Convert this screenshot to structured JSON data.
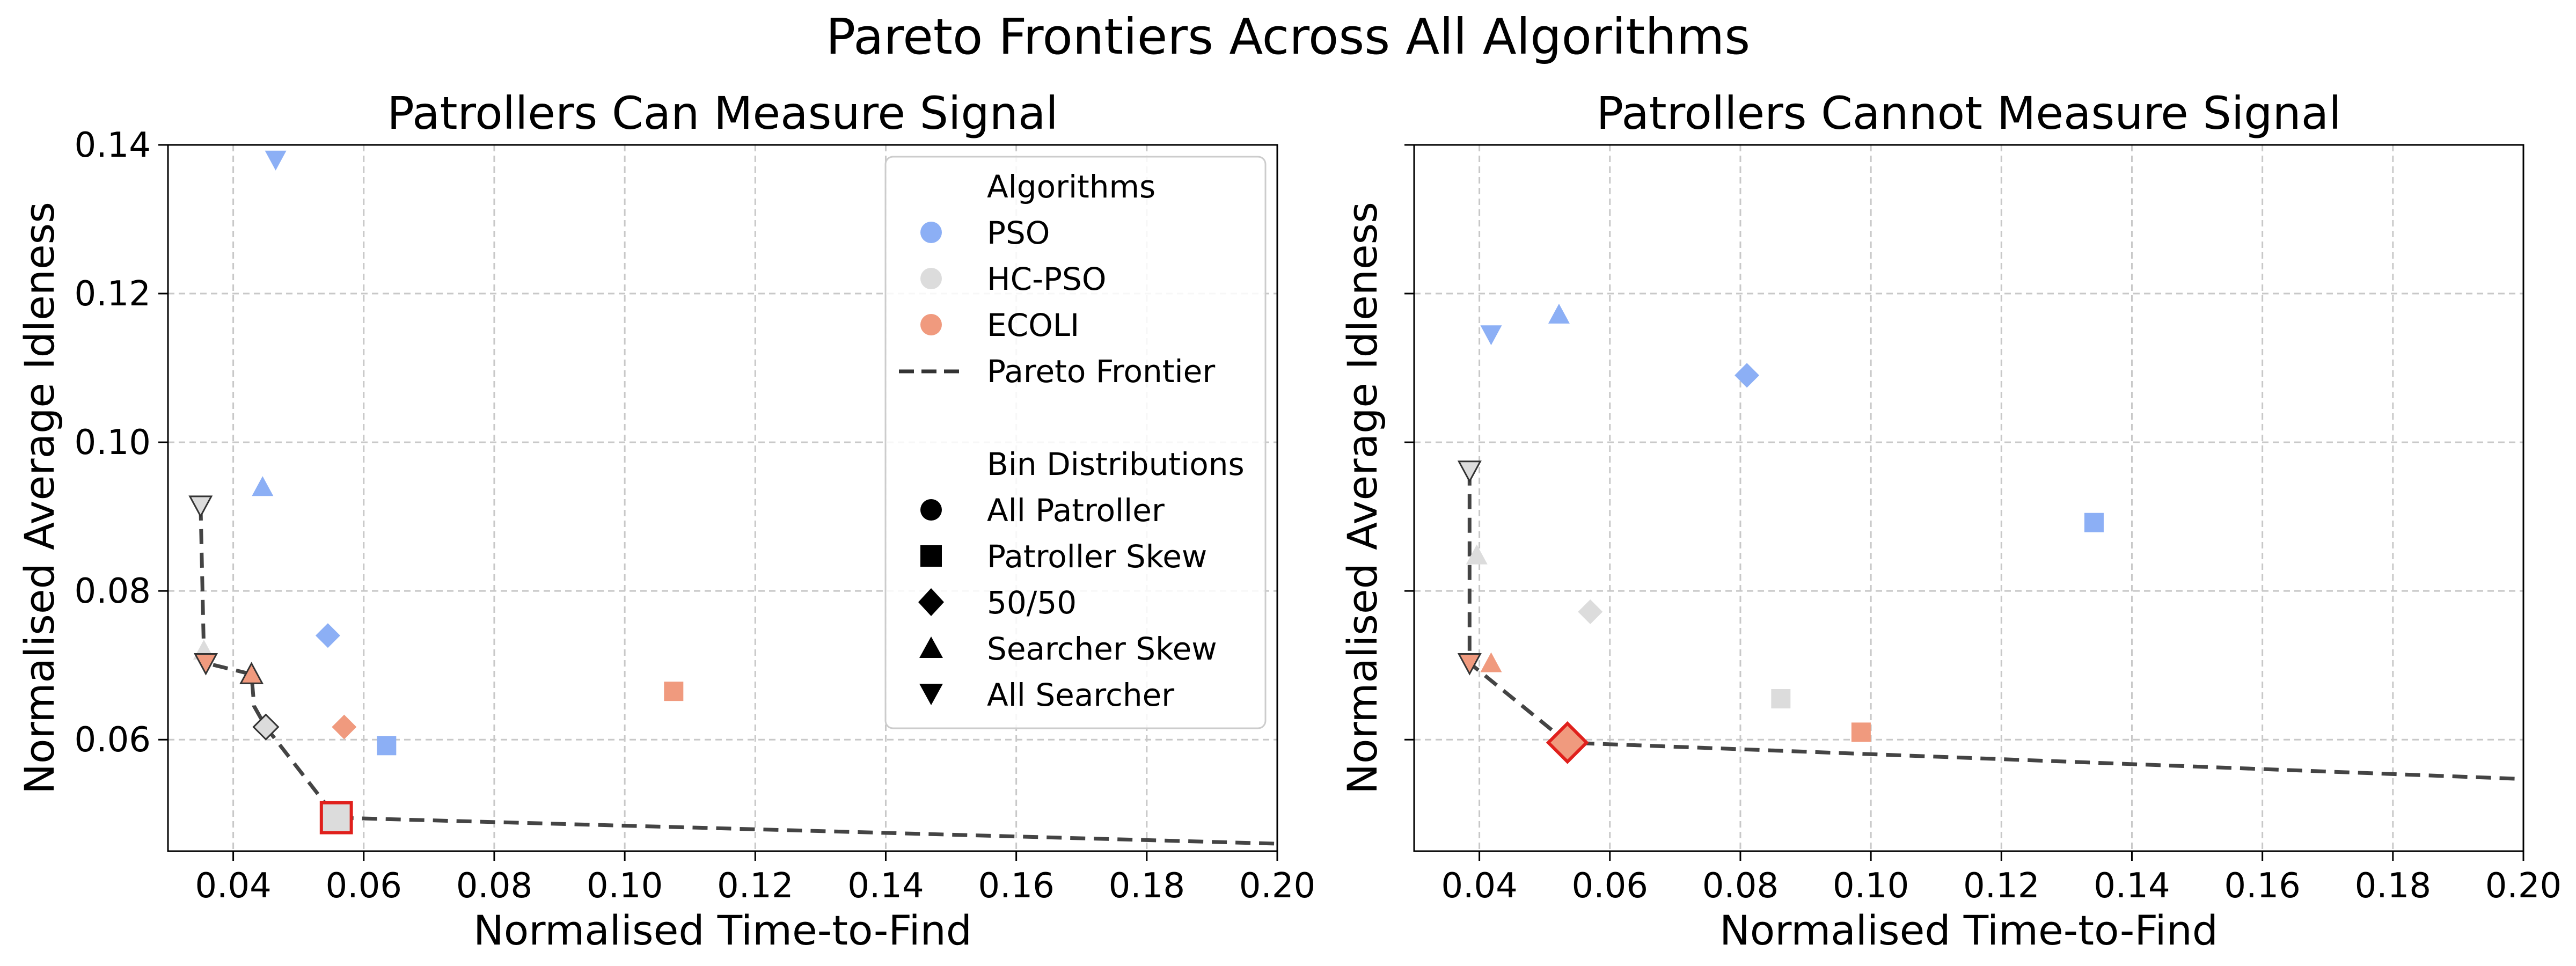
{
  "figure": {
    "title": "Pareto Frontiers Across All Algorithms"
  },
  "legend": {
    "algorithms_title": "Algorithms",
    "algorithms": [
      {
        "name": "PSO",
        "color": "#8caff5"
      },
      {
        "name": "HC-PSO",
        "color": "#dcdcdc"
      },
      {
        "name": "ECOLI",
        "color": "#f09a7e"
      }
    ],
    "frontier_label": "Pareto Frontier",
    "bins_title": "Bin Distributions",
    "bins": [
      {
        "name": "All Patroller",
        "marker": "circle"
      },
      {
        "name": "Patroller Skew",
        "marker": "square"
      },
      {
        "name": "50/50",
        "marker": "diamond"
      },
      {
        "name": "Searcher Skew",
        "marker": "triangle-up"
      },
      {
        "name": "All Searcher",
        "marker": "triangle-down"
      }
    ]
  },
  "colors": {
    "PSO": "#8caff5",
    "HC-PSO": "#dcdcdc",
    "ECOLI": "#f09a7e",
    "frontier": "#444444",
    "highlight": "#e0201c",
    "grid": "#c8c8c8"
  },
  "chart_data": [
    {
      "type": "scatter",
      "title": "Patrollers Can Measure Signal",
      "xlabel": "Normalised Time-to-Find",
      "ylabel": "Normalised Average Idleness",
      "xlim": [
        0.03,
        0.2
      ],
      "ylim": [
        0.045,
        0.14
      ],
      "xticks": [
        0.04,
        0.06,
        0.08,
        0.1,
        0.12,
        0.14,
        0.16,
        0.18,
        0.2
      ],
      "xtick_labels": [
        "0.04",
        "0.06",
        "0.08",
        "0.10",
        "0.12",
        "0.14",
        "0.16",
        "0.18",
        "0.20"
      ],
      "yticks": [
        0.06,
        0.08,
        0.1,
        0.12,
        0.14
      ],
      "ytick_labels": [
        "0.06",
        "0.08",
        "0.10",
        "0.12",
        "0.14"
      ],
      "grid": true,
      "legend_position": "top-right",
      "points": [
        {
          "algorithm": "PSO",
          "bin": "All Searcher",
          "x": 0.0465,
          "y": 0.138
        },
        {
          "algorithm": "PSO",
          "bin": "Searcher Skew",
          "x": 0.0445,
          "y": 0.094
        },
        {
          "algorithm": "PSO",
          "bin": "50/50",
          "x": 0.0545,
          "y": 0.074
        },
        {
          "algorithm": "PSO",
          "bin": "Patroller Skew",
          "x": 0.0635,
          "y": 0.0592
        },
        {
          "algorithm": "HC-PSO",
          "bin": "All Searcher",
          "x": 0.035,
          "y": 0.0915,
          "frontier": true
        },
        {
          "algorithm": "HC-PSO",
          "bin": "Searcher Skew",
          "x": 0.0355,
          "y": 0.072
        },
        {
          "algorithm": "HC-PSO",
          "bin": "50/50",
          "x": 0.045,
          "y": 0.0617,
          "frontier": true
        },
        {
          "algorithm": "ECOLI",
          "bin": "All Searcher",
          "x": 0.0358,
          "y": 0.0703,
          "frontier": true
        },
        {
          "algorithm": "ECOLI",
          "bin": "Searcher Skew",
          "x": 0.0428,
          "y": 0.0688,
          "frontier": true
        },
        {
          "algorithm": "ECOLI",
          "bin": "50/50",
          "x": 0.057,
          "y": 0.0617
        },
        {
          "algorithm": "ECOLI",
          "bin": "Patroller Skew",
          "x": 0.1075,
          "y": 0.0665
        },
        {
          "algorithm": "HC-PSO",
          "bin": "Patroller Skew",
          "x": 0.0558,
          "y": 0.0495,
          "frontier": true,
          "highlight": true
        }
      ],
      "pareto_frontier": {
        "x": [
          0.035,
          0.0355,
          0.0358,
          0.0428,
          0.0432,
          0.045,
          0.0558,
          0.2
        ],
        "y": [
          0.0915,
          0.0717,
          0.0703,
          0.0688,
          0.0645,
          0.0617,
          0.0495,
          0.046
        ]
      }
    },
    {
      "type": "scatter",
      "title": "Patrollers Cannot Measure Signal",
      "xlabel": "Normalised Time-to-Find",
      "ylabel": "Normalised Average Idleness",
      "xlim": [
        0.03,
        0.2
      ],
      "ylim": [
        0.045,
        0.14
      ],
      "xticks": [
        0.04,
        0.06,
        0.08,
        0.1,
        0.12,
        0.14,
        0.16,
        0.18,
        0.2
      ],
      "xtick_labels": [
        "0.04",
        "0.06",
        "0.08",
        "0.10",
        "0.12",
        "0.14",
        "0.16",
        "0.18",
        "0.20"
      ],
      "yticks": [
        0.06,
        0.08,
        0.1,
        0.12,
        0.14
      ],
      "ytick_labels": [],
      "grid": true,
      "points": [
        {
          "algorithm": "PSO",
          "bin": "All Searcher",
          "x": 0.0418,
          "y": 0.1145
        },
        {
          "algorithm": "PSO",
          "bin": "Searcher Skew",
          "x": 0.0522,
          "y": 0.1172
        },
        {
          "algorithm": "PSO",
          "bin": "50/50",
          "x": 0.081,
          "y": 0.109
        },
        {
          "algorithm": "PSO",
          "bin": "Patroller Skew",
          "x": 0.1342,
          "y": 0.0892
        },
        {
          "algorithm": "HC-PSO",
          "bin": "All Searcher",
          "x": 0.0385,
          "y": 0.0962,
          "frontier": true
        },
        {
          "algorithm": "HC-PSO",
          "bin": "Searcher Skew",
          "x": 0.0396,
          "y": 0.0848
        },
        {
          "algorithm": "HC-PSO",
          "bin": "50/50",
          "x": 0.057,
          "y": 0.0772
        },
        {
          "algorithm": "HC-PSO",
          "bin": "Patroller Skew",
          "x": 0.0862,
          "y": 0.0655
        },
        {
          "algorithm": "ECOLI",
          "bin": "All Searcher",
          "x": 0.0385,
          "y": 0.0703,
          "frontier": true
        },
        {
          "algorithm": "ECOLI",
          "bin": "Searcher Skew",
          "x": 0.0418,
          "y": 0.0703
        },
        {
          "algorithm": "ECOLI",
          "bin": "Patroller Skew",
          "x": 0.0985,
          "y": 0.061
        },
        {
          "algorithm": "ECOLI",
          "bin": "50/50",
          "x": 0.0535,
          "y": 0.0596,
          "frontier": true,
          "highlight": true
        }
      ],
      "pareto_frontier": {
        "x": [
          0.0385,
          0.0385,
          0.0535,
          0.2
        ],
        "y": [
          0.0962,
          0.0703,
          0.0596,
          0.0547
        ]
      }
    }
  ]
}
